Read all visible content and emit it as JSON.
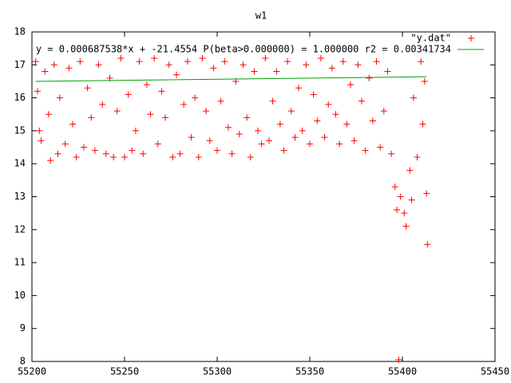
{
  "chart_data": {
    "type": "scatter",
    "title": "w1",
    "xlim": [
      55200,
      55450
    ],
    "xticks": [
      55200,
      55250,
      55300,
      55350,
      55400,
      55450
    ],
    "ylim": [
      8,
      18
    ],
    "yticks": [
      8,
      9,
      10,
      11,
      12,
      13,
      14,
      15,
      16,
      17,
      18
    ],
    "legend": "top-right",
    "series": [
      {
        "name": "\"y.dat\"",
        "color": "#ff0000",
        "style": "points",
        "x": [
          55202,
          55203,
          55204,
          55205,
          55207,
          55209,
          55210,
          55212,
          55214,
          55215,
          55218,
          55220,
          55222,
          55224,
          55226,
          55228,
          55230,
          55232,
          55234,
          55236,
          55238,
          55240,
          55242,
          55244,
          55246,
          55248,
          55250,
          55252,
          55254,
          55256,
          55258,
          55260,
          55262,
          55264,
          55266,
          55268,
          55270,
          55272,
          55274,
          55276,
          55278,
          55280,
          55282,
          55284,
          55286,
          55288,
          55290,
          55292,
          55294,
          55296,
          55298,
          55300,
          55302,
          55304,
          55306,
          55308,
          55310,
          55312,
          55314,
          55316,
          55318,
          55320,
          55322,
          55324,
          55326,
          55328,
          55330,
          55332,
          55334,
          55336,
          55338,
          55340,
          55342,
          55344,
          55346,
          55348,
          55350,
          55352,
          55354,
          55356,
          55358,
          55360,
          55362,
          55364,
          55366,
          55368,
          55370,
          55372,
          55374,
          55376,
          55378,
          55380,
          55382,
          55384,
          55386,
          55388,
          55390,
          55392,
          55394,
          55396,
          55397,
          55398,
          55399,
          55401,
          55402,
          55404,
          55405,
          55406,
          55408,
          55410,
          55411,
          55412,
          55413,
          55413.5
        ],
        "values": [
          17.1,
          16.2,
          15.0,
          14.7,
          16.8,
          15.5,
          14.1,
          17.0,
          14.3,
          16.0,
          14.6,
          16.9,
          15.2,
          14.2,
          17.1,
          14.5,
          16.3,
          15.4,
          14.4,
          17.0,
          15.8,
          14.3,
          16.6,
          14.2,
          15.6,
          17.2,
          14.2,
          16.1,
          14.4,
          15.0,
          17.1,
          14.3,
          16.4,
          15.5,
          17.2,
          14.6,
          16.2,
          15.4,
          17.0,
          14.2,
          16.7,
          14.3,
          15.8,
          17.1,
          14.8,
          16.0,
          14.2,
          17.2,
          15.6,
          14.7,
          16.9,
          14.4,
          15.9,
          17.1,
          15.1,
          14.3,
          16.5,
          14.9,
          17.0,
          15.4,
          14.2,
          16.8,
          15.0,
          14.6,
          17.2,
          14.7,
          15.9,
          16.8,
          15.2,
          14.4,
          17.1,
          15.6,
          14.8,
          16.3,
          15.0,
          17.0,
          14.6,
          16.1,
          15.3,
          17.2,
          14.8,
          15.8,
          16.9,
          15.5,
          14.6,
          17.1,
          15.2,
          16.4,
          14.7,
          17.0,
          15.9,
          14.4,
          16.6,
          15.3,
          17.1,
          14.5,
          15.6,
          16.8,
          14.3,
          13.3,
          12.6,
          8.05,
          13.0,
          12.5,
          12.1,
          13.8,
          12.9,
          16.0,
          14.2,
          17.1,
          15.2,
          16.5,
          13.1,
          11.55
        ]
      },
      {
        "name": "y = 0.000687538*x + -21.4554 P(beta>0.000000) = 1.000000 r2 = 0.00341734",
        "color": "#00a000",
        "style": "lines",
        "x": [
          55202,
          55413
        ],
        "values": [
          16.5,
          16.64
        ]
      }
    ]
  }
}
